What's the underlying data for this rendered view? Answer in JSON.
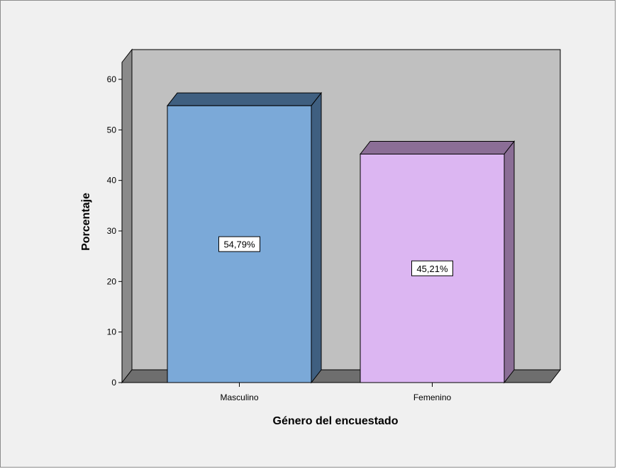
{
  "chart_data": {
    "type": "bar",
    "style": "3d",
    "categories": [
      "Masculino",
      "Femenino"
    ],
    "values": [
      54.79,
      45.21
    ],
    "data_labels": [
      "54,79%",
      "45,21%"
    ],
    "bar_colors": [
      "#7ba9d8",
      "#dcb6f2"
    ],
    "bar_dark_colors": [
      "#3f5f80",
      "#8b6e96"
    ],
    "title": "",
    "xlabel": "Género del encuestado",
    "ylabel": "Porcentaje",
    "ylim": [
      0,
      60
    ],
    "yticks": [
      0,
      10,
      20,
      30,
      40,
      50,
      60
    ],
    "grid": false,
    "legend": false,
    "wall_color": "#c0c0c0",
    "floor_color": "#6e6e6e",
    "side_wall_color": "#8a8a8a"
  }
}
